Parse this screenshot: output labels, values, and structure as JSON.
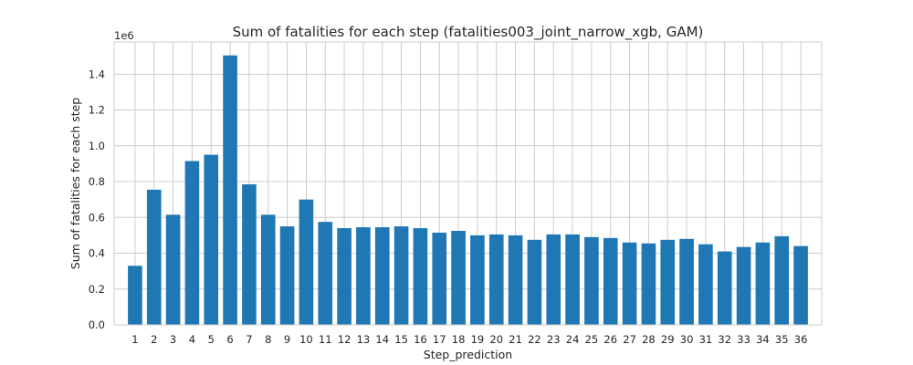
{
  "chart_data": {
    "type": "bar",
    "title": "Sum of fatalities for each step (fatalities003_joint_narrow_xgb, GAM)",
    "xlabel": "Step_prediction",
    "ylabel": "Sum of fatalities for each step",
    "y_offset_label": "1e6",
    "categories": [
      "1",
      "2",
      "3",
      "4",
      "5",
      "6",
      "7",
      "8",
      "9",
      "10",
      "11",
      "12",
      "13",
      "14",
      "15",
      "16",
      "17",
      "18",
      "19",
      "20",
      "21",
      "22",
      "23",
      "24",
      "25",
      "26",
      "27",
      "28",
      "29",
      "30",
      "31",
      "32",
      "33",
      "34",
      "35",
      "36"
    ],
    "values": [
      330000,
      755000,
      615000,
      915000,
      950000,
      1505000,
      785000,
      615000,
      550000,
      700000,
      575000,
      540000,
      545000,
      545000,
      550000,
      540000,
      515000,
      525000,
      500000,
      505000,
      500000,
      475000,
      505000,
      505000,
      490000,
      485000,
      460000,
      455000,
      475000,
      480000,
      450000,
      410000,
      435000,
      460000,
      495000,
      440000
    ],
    "yticks": [
      0,
      0.2,
      0.4,
      0.6,
      0.8,
      1.0,
      1.2,
      1.4
    ],
    "ytick_labels": [
      "0.0",
      "0.2",
      "0.4",
      "0.6",
      "0.8",
      "1.0",
      "1.2",
      "1.4"
    ],
    "y_scale": 1000000,
    "ylim": [
      0,
      1.58
    ],
    "grid": true,
    "bar_color": "#1f77b4",
    "grid_color": "#cccccc"
  }
}
